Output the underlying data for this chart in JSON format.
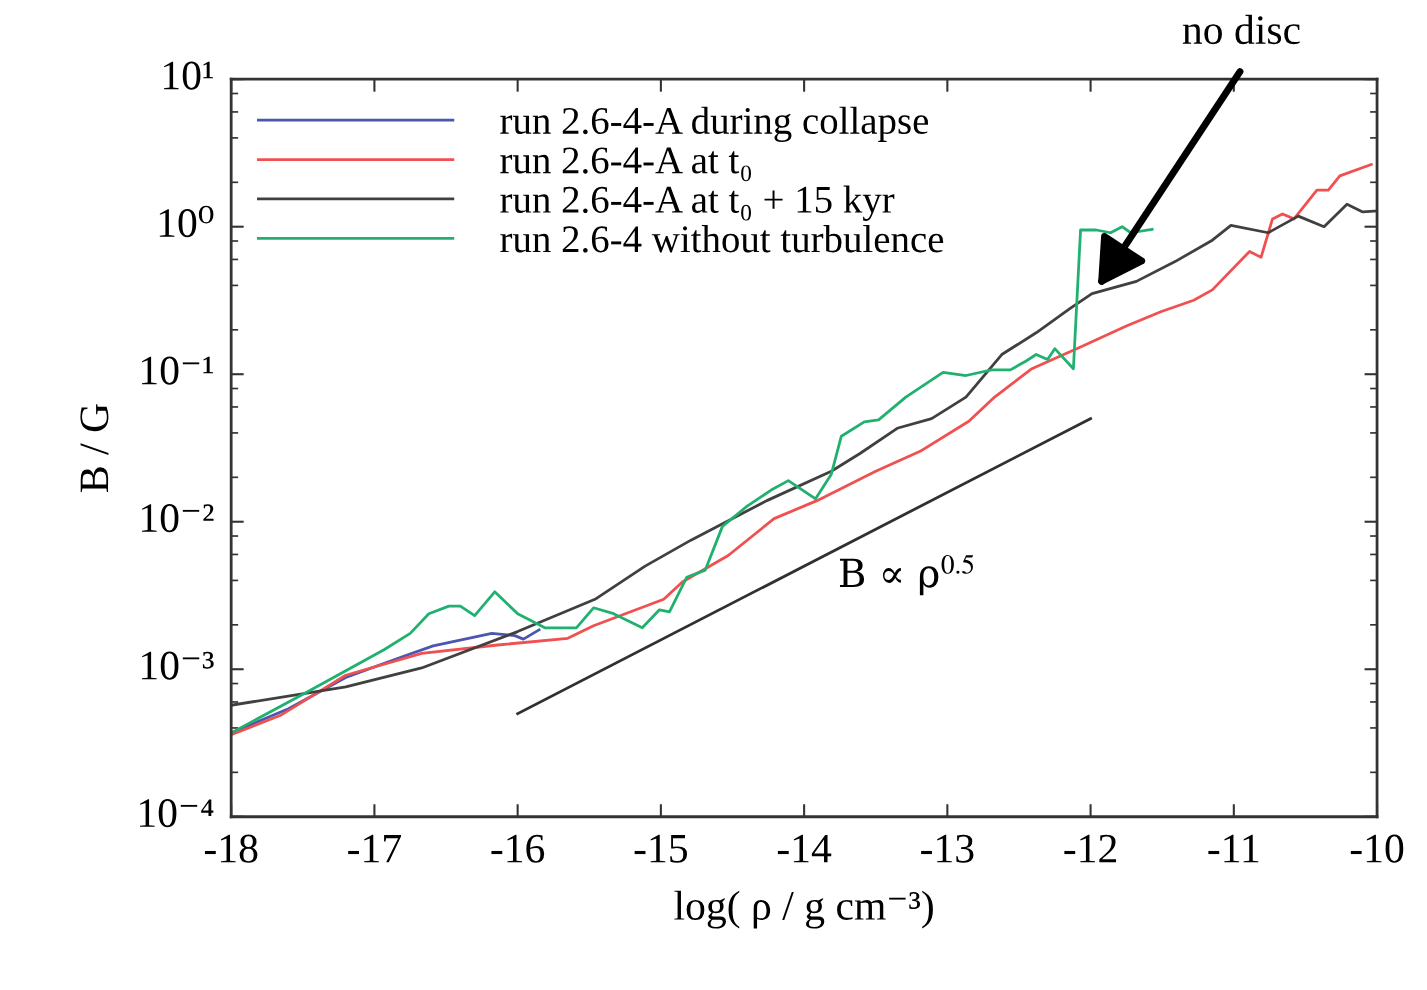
{
  "chart_data": {
    "type": "line",
    "xlabel": "log( ρ / g cm⁻³)",
    "ylabel": "B / G",
    "log": "y",
    "xlim": [
      -18,
      -10
    ],
    "xticks": [
      -18,
      -17,
      -16,
      -15,
      -14,
      -13,
      -12,
      -11,
      -10
    ],
    "ylim": [
      0.0001,
      10
    ],
    "yticks": [
      {
        "value": 0.0001,
        "label": "10⁻⁴"
      },
      {
        "value": 0.001,
        "label": "10⁻³"
      },
      {
        "value": 0.01,
        "label": "10⁻²"
      },
      {
        "value": 0.1,
        "label": "10⁻¹"
      },
      {
        "value": 1,
        "label": "10⁰"
      },
      {
        "value": 10,
        "label": "10¹"
      }
    ],
    "legend": "top left",
    "series": [
      {
        "name": "run 2.6-4-A during collapse",
        "color": "#4a56b0",
        "x": [
          -18.0,
          -17.6,
          -17.2,
          -16.81,
          -16.59,
          -16.18,
          -16.02,
          -15.96,
          -15.85
        ],
        "values": [
          0.00037,
          0.00054,
          0.00088,
          0.00121,
          0.00144,
          0.00175,
          0.00169,
          0.0016,
          0.00185
        ]
      },
      {
        "name": "run 2.6-4-A at t₀",
        "color": "#f05050",
        "x": [
          -18.0,
          -17.65,
          -17.2,
          -16.67,
          -16.14,
          -15.65,
          -15.47,
          -14.98,
          -14.85,
          -14.53,
          -14.21,
          -13.91,
          -13.5,
          -13.19,
          -12.85,
          -12.67,
          -12.41,
          -12.07,
          -11.75,
          -11.51,
          -11.28,
          -11.15,
          -10.89,
          -10.81,
          -10.73,
          -10.66,
          -10.58,
          -10.42,
          -10.34,
          -10.26,
          -10.04
        ],
        "values": [
          0.00036,
          0.00049,
          0.00091,
          0.00128,
          0.00146,
          0.00162,
          0.00197,
          0.00298,
          0.0039,
          0.0059,
          0.0105,
          0.0139,
          0.022,
          0.03,
          0.048,
          0.07,
          0.109,
          0.153,
          0.212,
          0.265,
          0.317,
          0.373,
          0.68,
          0.62,
          1.13,
          1.22,
          1.13,
          1.77,
          1.77,
          2.21,
          2.64
        ]
      },
      {
        "name": "run 2.6-4-A at t₀ + 15 kyr",
        "color": "#404040",
        "x": [
          -18.0,
          -17.2,
          -16.67,
          -16.0,
          -15.46,
          -15.11,
          -14.79,
          -14.26,
          -13.81,
          -13.61,
          -13.35,
          -13.11,
          -12.87,
          -12.62,
          -12.38,
          -12.14,
          -11.99,
          -11.68,
          -11.41,
          -11.15,
          -11.02,
          -10.76,
          -10.55,
          -10.37,
          -10.21,
          -10.1,
          -10.0
        ],
        "values": [
          0.00057,
          0.00076,
          0.00102,
          0.0018,
          0.00298,
          0.005,
          0.0075,
          0.0139,
          0.022,
          0.029,
          0.043,
          0.05,
          0.07,
          0.136,
          0.191,
          0.281,
          0.352,
          0.426,
          0.58,
          0.81,
          1.02,
          0.91,
          1.18,
          1.0,
          1.42,
          1.26,
          1.28
        ]
      },
      {
        "name": "run 2.6-4 without turbulence",
        "color": "#20b070",
        "x": [
          -18.0,
          -17.46,
          -16.93,
          -16.75,
          -16.62,
          -16.48,
          -16.4,
          -16.3,
          -16.16,
          -16.0,
          -15.81,
          -15.59,
          -15.47,
          -15.33,
          -15.13,
          -15.01,
          -14.94,
          -14.82,
          -14.69,
          -14.57,
          -14.4,
          -14.23,
          -14.11,
          -13.92,
          -13.81,
          -13.74,
          -13.58,
          -13.48,
          -13.29,
          -13.03,
          -12.87,
          -12.69,
          -12.56,
          -12.45,
          -12.38,
          -12.3,
          -12.25,
          -12.12,
          -12.07,
          -11.96,
          -11.86,
          -11.78,
          -11.72,
          -11.57
        ],
        "values": [
          0.00037,
          0.00071,
          0.00136,
          0.00175,
          0.00238,
          0.00268,
          0.00268,
          0.00231,
          0.00335,
          0.00238,
          0.00191,
          0.00191,
          0.00261,
          0.00238,
          0.00191,
          0.00253,
          0.00245,
          0.0042,
          0.0047,
          0.0093,
          0.0127,
          0.0164,
          0.019,
          0.0143,
          0.021,
          0.038,
          0.0475,
          0.049,
          0.07,
          0.103,
          0.098,
          0.107,
          0.107,
          0.123,
          0.136,
          0.126,
          0.149,
          0.109,
          0.95,
          0.95,
          0.91,
          1.0,
          0.91,
          0.96
        ]
      },
      {
        "color": "#303030",
        "x": [
          -16,
          -12
        ],
        "values": [
          0.0005,
          0.05
        ]
      }
    ],
    "annotations": [
      "B ∝ ρ$^{0.5}$",
      "no disc"
    ]
  }
}
